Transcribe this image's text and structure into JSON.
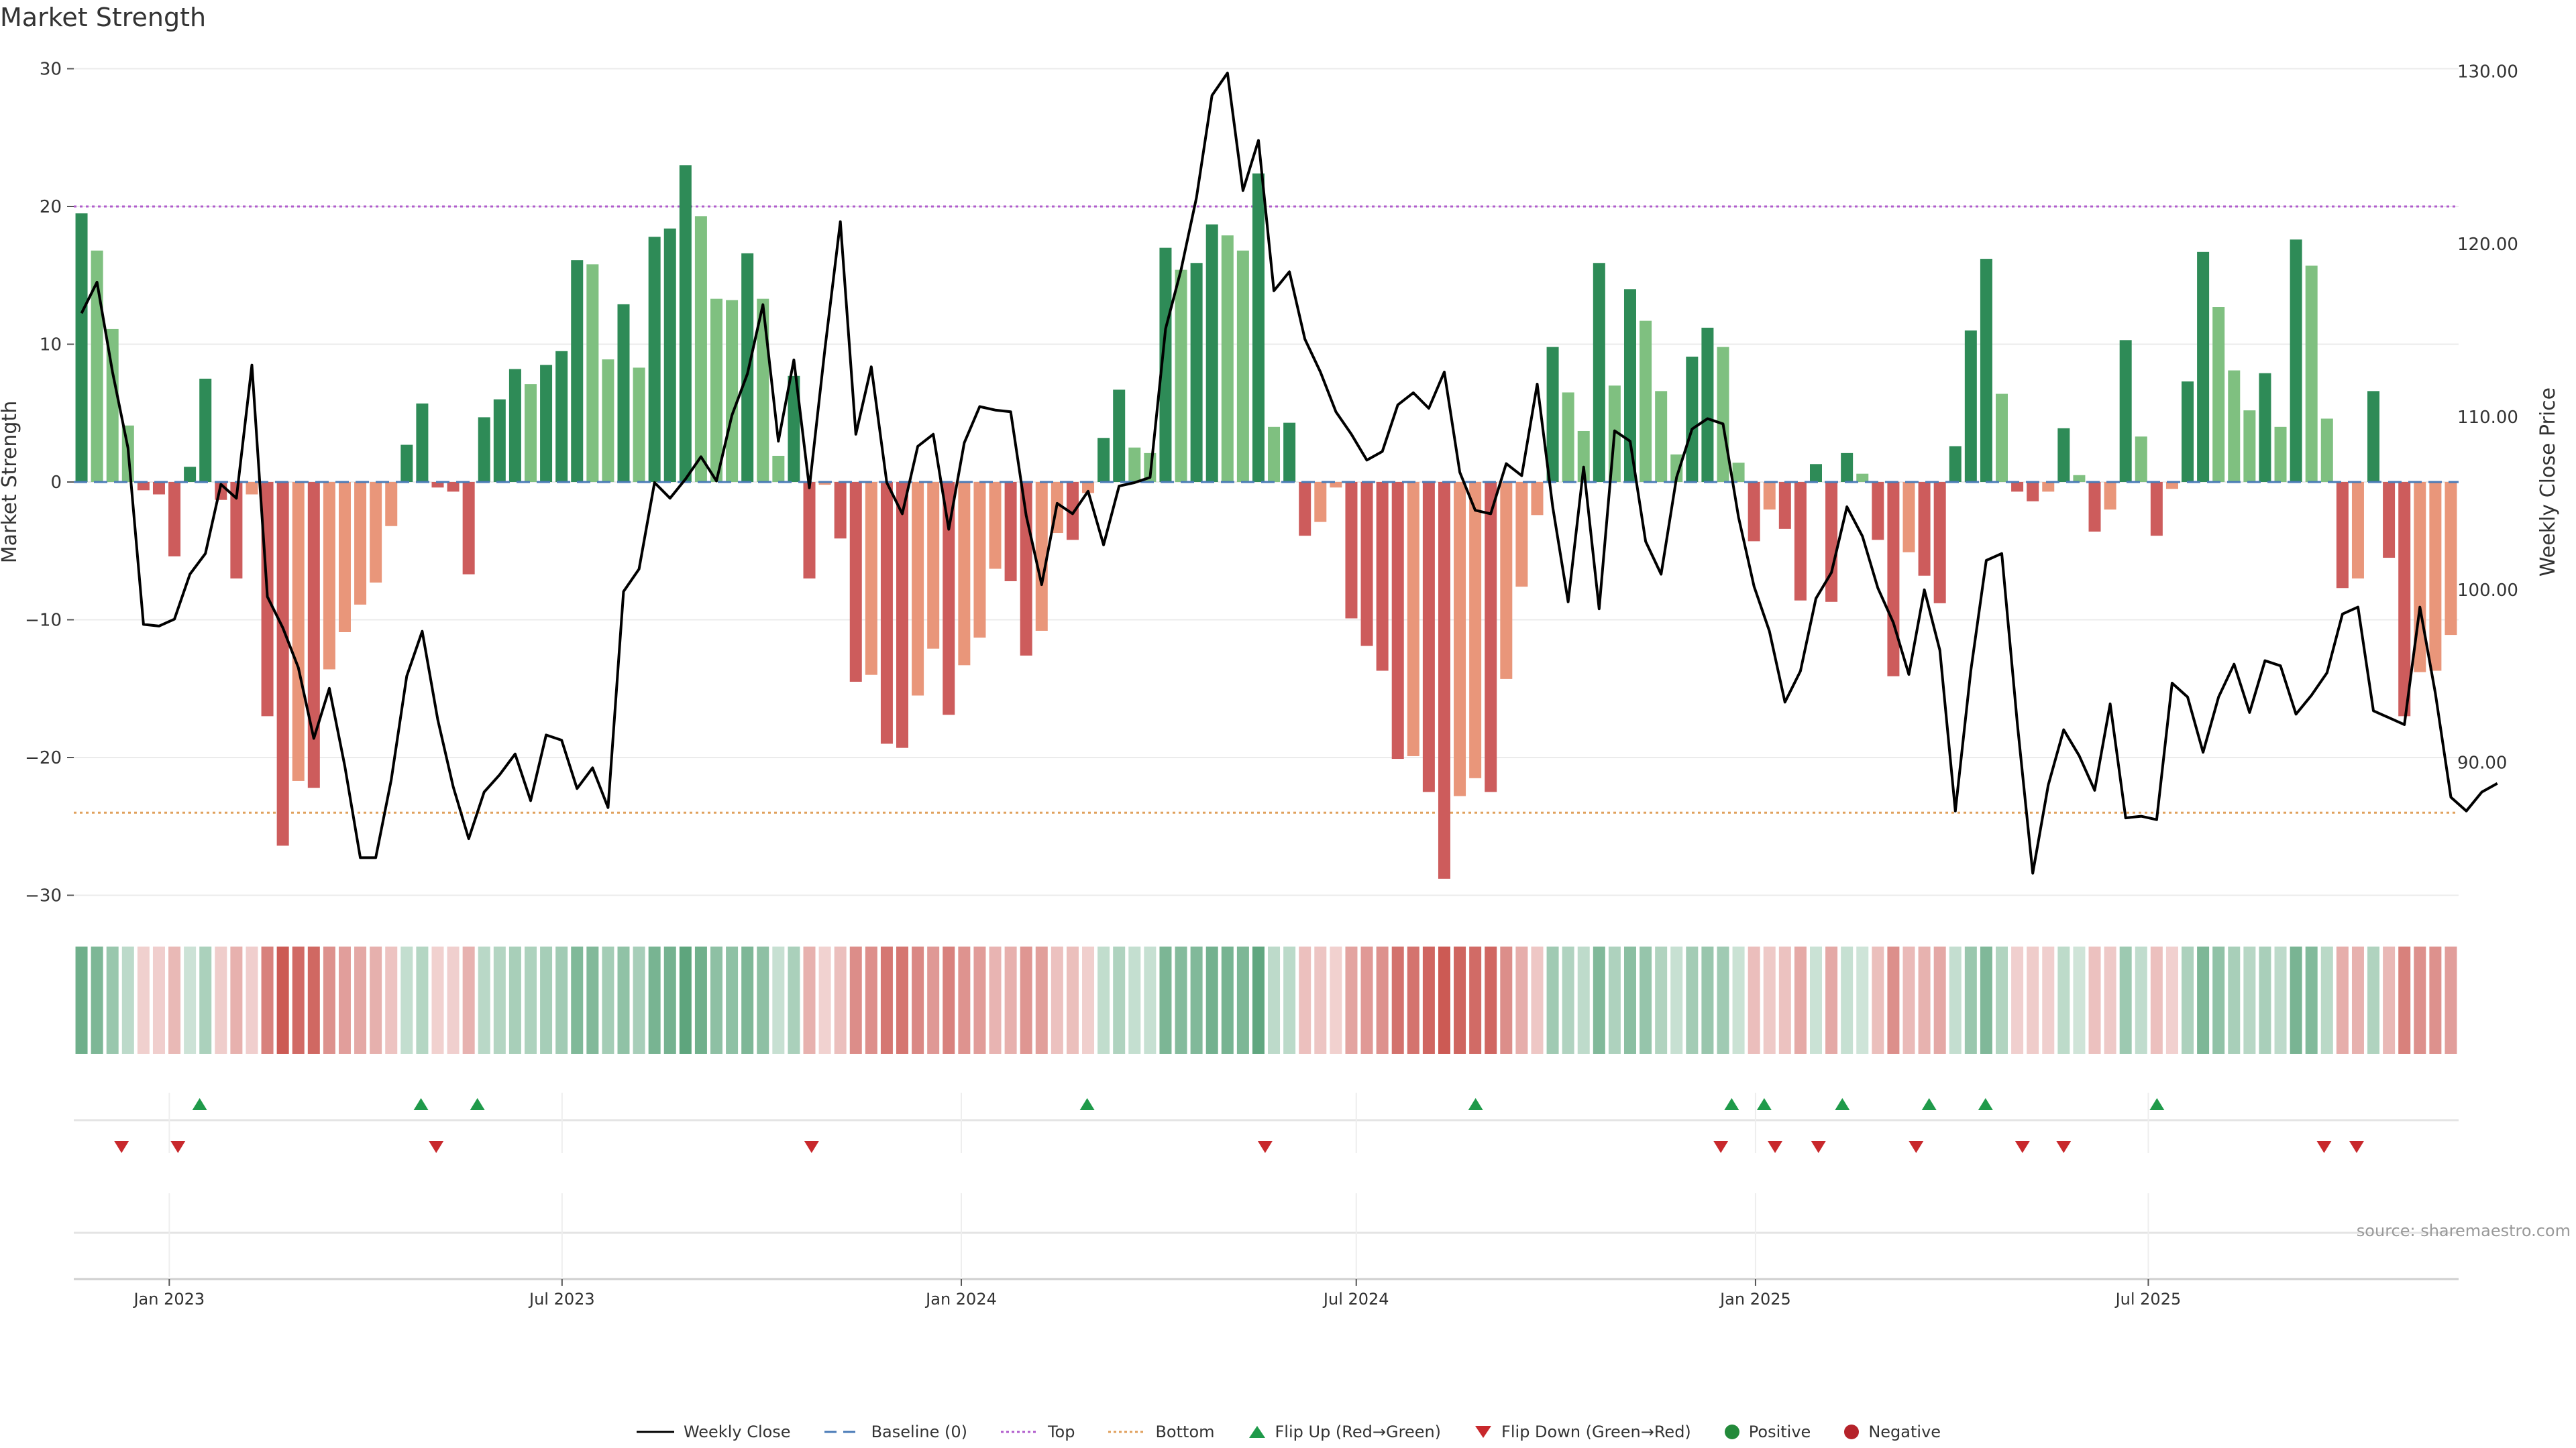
{
  "title": "Market Strength",
  "source": "source: sharemaestro.com",
  "chart_data": {
    "type": "bar",
    "y_left_label": "Market Strength",
    "y_right_label": "Weekly Close Price",
    "y_left_ticks": [
      30,
      20,
      10,
      0,
      -10,
      -20,
      -30
    ],
    "y_left_tick_labels": [
      "30",
      "20",
      "10",
      "0",
      "−10",
      "−20",
      "−30"
    ],
    "y_left_lim": [
      -30,
      30
    ],
    "y_right_ticks": [
      130,
      120,
      110,
      100,
      90
    ],
    "y_right_tick_labels": [
      "130.00",
      "120.00",
      "110.00",
      "100.00",
      "90.00"
    ],
    "y_right_lim": [
      82.5,
      130.4
    ],
    "top_line": 20,
    "bottom_line": -24,
    "x_start": "2022-11-18",
    "x_end": "2025-11-21",
    "x_ticks": [
      {
        "label": "Jan 2023",
        "date": "2023-01-01"
      },
      {
        "label": "Jul 2023",
        "date": "2023-07-01"
      },
      {
        "label": "Jan 2024",
        "date": "2024-01-01"
      },
      {
        "label": "Jul 2024",
        "date": "2024-07-01"
      },
      {
        "label": "Jan 2025",
        "date": "2025-01-01"
      },
      {
        "label": "Jul 2025",
        "date": "2025-07-01"
      }
    ],
    "strength": [
      19.5,
      16.8,
      11.1,
      4.1,
      -0.6,
      -0.9,
      -5.4,
      1.1,
      7.5,
      -1.3,
      -7.0,
      -0.9,
      -17.0,
      -26.4,
      -21.7,
      -22.2,
      -13.6,
      -10.9,
      -8.9,
      -7.3,
      -3.2,
      2.7,
      5.7,
      -0.4,
      -0.7,
      -6.7,
      4.7,
      6.0,
      8.2,
      7.1,
      8.5,
      9.5,
      16.1,
      15.8,
      8.9,
      12.9,
      8.3,
      17.8,
      18.4,
      23.0,
      19.3,
      13.3,
      13.2,
      16.6,
      13.3,
      1.9,
      7.7,
      -7.0,
      -0.2,
      -4.1,
      -14.5,
      -14.0,
      -19.0,
      -19.3,
      -15.5,
      -12.1,
      -16.9,
      -13.3,
      -11.3,
      -6.3,
      -7.2,
      -12.6,
      -10.8,
      -3.7,
      -4.2,
      -0.8,
      3.2,
      6.7,
      2.5,
      2.1,
      17.0,
      15.4,
      15.9,
      18.7,
      17.9,
      16.8,
      22.4,
      4.0,
      4.3,
      -3.9,
      -2.9,
      -0.4,
      -9.9,
      -11.9,
      -13.7,
      -20.1,
      -19.9,
      -22.5,
      -28.8,
      -22.8,
      -21.5,
      -22.5,
      -14.3,
      -7.6,
      -2.4,
      9.8,
      6.5,
      3.7,
      15.9,
      7.0,
      14.0,
      11.7,
      6.6,
      2.0,
      9.1,
      11.2,
      9.8,
      1.4,
      -4.3,
      -2.0,
      -3.4,
      -8.6,
      1.3,
      -8.7,
      2.1,
      0.6,
      -4.2,
      -14.1,
      -5.1,
      -6.8,
      -8.8,
      2.6,
      11.0,
      16.2,
      6.4,
      -0.7,
      -1.4,
      -0.7,
      3.9,
      0.5,
      -3.6,
      -2.0,
      10.3,
      3.3,
      -3.9,
      -0.5,
      7.3,
      16.7,
      12.7,
      8.1,
      5.2,
      7.9,
      4.0,
      17.6,
      15.7,
      4.6,
      -7.7,
      -7.0,
      6.6,
      -5.5,
      -17.0,
      -13.8,
      -13.7,
      -11.1
    ],
    "weekly_close": [
      116.0,
      117.8,
      112.6,
      108.2,
      98.0,
      97.9,
      98.3,
      100.9,
      102.1,
      106.1,
      105.3,
      113.0,
      99.6,
      97.8,
      95.5,
      91.4,
      94.3,
      89.8,
      84.5,
      84.5,
      89.0,
      95.0,
      97.6,
      92.5,
      88.6,
      85.6,
      88.3,
      89.3,
      90.5,
      87.8,
      91.6,
      91.3,
      88.5,
      89.7,
      87.4,
      99.9,
      101.2,
      106.2,
      105.3,
      106.4,
      107.7,
      106.3,
      110.1,
      112.5,
      116.5,
      108.6,
      113.3,
      105.9,
      113.9,
      121.3,
      109.0,
      112.9,
      106.2,
      104.4,
      108.3,
      109.0,
      103.5,
      108.5,
      110.6,
      110.4,
      110.3,
      104.3,
      100.3,
      105.0,
      104.4,
      105.7,
      102.6,
      106.0,
      106.2,
      106.5,
      115.1,
      118.5,
      122.7,
      128.6,
      129.9,
      123.1,
      126.0,
      117.3,
      118.4,
      114.5,
      112.6,
      110.3,
      109.0,
      107.5,
      108.0,
      110.7,
      111.4,
      110.5,
      112.6,
      106.8,
      104.6,
      104.4,
      107.3,
      106.6,
      111.9,
      104.8,
      99.3,
      107.1,
      98.9,
      109.2,
      108.6,
      102.8,
      100.9,
      106.5,
      109.3,
      109.9,
      109.6,
      104.2,
      100.2,
      97.6,
      93.5,
      95.3,
      99.5,
      101.0,
      104.8,
      103.1,
      100.1,
      98.1,
      95.1,
      100.0,
      96.5,
      87.2,
      95.3,
      101.7,
      102.1,
      92.3,
      83.6,
      88.7,
      91.9,
      90.4,
      88.4,
      93.4,
      86.8,
      86.9,
      86.7,
      94.6,
      93.8,
      90.6,
      93.8,
      95.7,
      92.9,
      95.9,
      95.6,
      92.8,
      93.9,
      95.2,
      98.6,
      99.0,
      93.0,
      92.6,
      92.2,
      99.0,
      94.0,
      88.0,
      87.2,
      88.3,
      88.8
    ],
    "flip_up_dates": [
      "2023-01-15",
      "2023-04-27",
      "2023-05-23",
      "2024-02-28",
      "2024-08-25",
      "2024-12-21",
      "2025-01-05",
      "2025-02-10",
      "2025-03-22",
      "2025-04-17",
      "2025-07-05"
    ],
    "flip_down_dates": [
      "2022-12-10",
      "2023-01-05",
      "2023-05-04",
      "2023-10-24",
      "2024-05-20",
      "2024-12-16",
      "2025-01-10",
      "2025-01-30",
      "2025-03-16",
      "2025-05-04",
      "2025-05-23",
      "2025-09-20",
      "2025-10-05"
    ]
  },
  "legend": [
    {
      "label": "Weekly Close",
      "symbol": "line",
      "color": "#000000"
    },
    {
      "label": "Baseline (0)",
      "symbol": "dash",
      "color": "#4a7bb7"
    },
    {
      "label": "Top",
      "symbol": "dot",
      "color": "#b05ccc"
    },
    {
      "label": "Bottom",
      "symbol": "dot",
      "color": "#e0a05c"
    },
    {
      "label": "Flip Up (Red→Green)",
      "symbol": "tri-up",
      "color": "#1f9a4a"
    },
    {
      "label": "Flip Down (Green→Red)",
      "symbol": "tri-down",
      "color": "#c8282c"
    },
    {
      "label": "Positive",
      "symbol": "circle",
      "color": "#238a3a"
    },
    {
      "label": "Negative",
      "symbol": "circle",
      "color": "#b5222a"
    }
  ],
  "colors": {
    "pos_dark": "#2e8b57",
    "pos_light": "#7fc080",
    "neg_dark": "#cd5c5c",
    "neg_light": "#e9967a",
    "heat_pos": "#2e8b57",
    "heat_neg": "#c1362f",
    "grid": "#ebebeb"
  }
}
